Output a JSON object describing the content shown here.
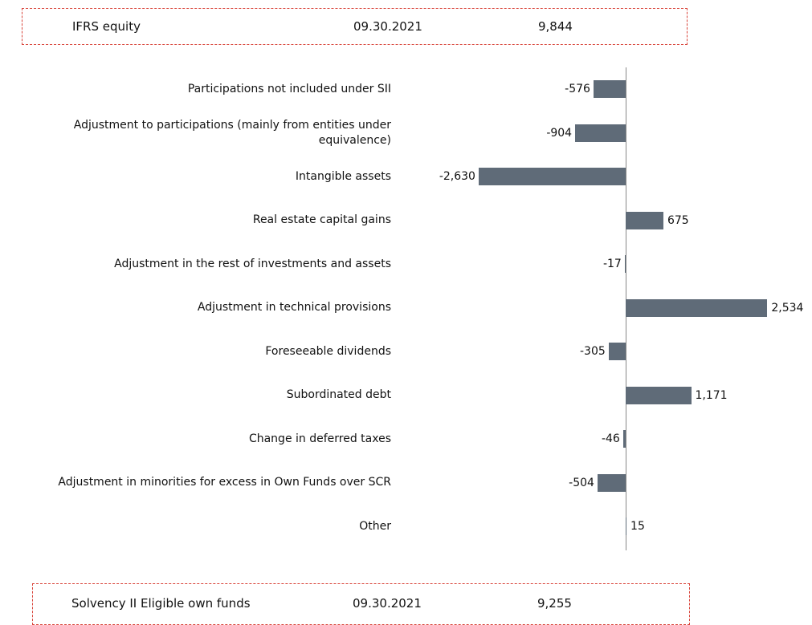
{
  "chart_data": {
    "type": "bar",
    "orientation": "horizontal",
    "header": {
      "label": "IFRS equity",
      "date": "09.30.2021",
      "amount": "9,844"
    },
    "footer": {
      "label": "Solvency II Eligible own funds",
      "date": "09.30.2021",
      "amount": "9,255"
    },
    "categories": [
      "Participations not included under SII",
      "Adjustment to participations (mainly from entities under equivalence)",
      "Intangible assets",
      "Real estate capital gains",
      "Adjustment in the rest of investments and assets",
      "Adjustment in technical provisions",
      "Foreseeable dividends",
      "Subordinated debt",
      "Change in deferred taxes",
      "Adjustment in minorities for excess in Own Funds over SCR",
      "Other"
    ],
    "values": [
      -576,
      -904,
      -2630,
      675,
      -17,
      2534,
      -305,
      1171,
      -46,
      -504,
      15
    ],
    "value_labels": [
      "-576",
      "-904",
      "-2,630",
      "675",
      "-17",
      "2,534",
      "-305",
      "1,171",
      "-46",
      "-504",
      "15"
    ],
    "color": "#5f6b78",
    "xlim": [
      -2800,
      2800
    ]
  }
}
